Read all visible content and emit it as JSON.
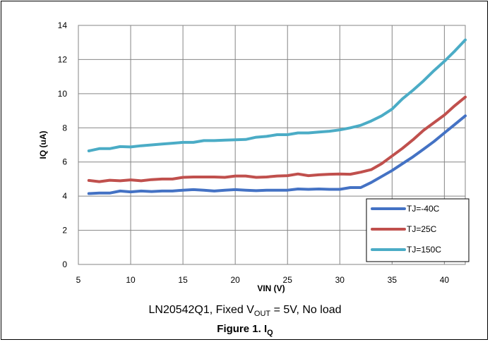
{
  "caption": {
    "prefix": "LN20542Q1, Fixed V",
    "sub": "OUT",
    "suffix": " = 5V, No load"
  },
  "figure_title": {
    "prefix": "Figure 1. I",
    "sub": "Q"
  },
  "chart_data": {
    "type": "line",
    "title": "",
    "xlabel": "VIN (V)",
    "ylabel": "IQ (uA)",
    "xlim": [
      5,
      42
    ],
    "ylim": [
      0,
      14
    ],
    "xticks": [
      5,
      10,
      15,
      20,
      25,
      30,
      35,
      40
    ],
    "yticks": [
      0,
      2,
      4,
      6,
      8,
      10,
      12,
      14
    ],
    "grid": true,
    "legend_position": "bottom-right",
    "x": [
      6,
      7,
      8,
      9,
      10,
      11,
      12,
      13,
      14,
      15,
      16,
      17,
      18,
      19,
      20,
      21,
      22,
      23,
      24,
      25,
      26,
      27,
      28,
      29,
      30,
      31,
      32,
      33,
      34,
      35,
      36,
      37,
      38,
      39,
      40,
      41,
      42
    ],
    "series": [
      {
        "name": "TJ=-40C",
        "color": "#4472C4",
        "values": [
          4.15,
          4.18,
          4.18,
          4.3,
          4.25,
          4.3,
          4.27,
          4.3,
          4.3,
          4.35,
          4.38,
          4.35,
          4.3,
          4.35,
          4.38,
          4.35,
          4.32,
          4.35,
          4.35,
          4.35,
          4.42,
          4.4,
          4.42,
          4.4,
          4.4,
          4.5,
          4.5,
          4.8,
          5.15,
          5.5,
          5.9,
          6.3,
          6.75,
          7.2,
          7.7,
          8.2,
          8.7
        ]
      },
      {
        "name": "TJ=25C",
        "color": "#C0504D",
        "values": [
          4.92,
          4.85,
          4.93,
          4.9,
          4.95,
          4.9,
          4.97,
          5.0,
          5.0,
          5.1,
          5.12,
          5.12,
          5.12,
          5.1,
          5.18,
          5.18,
          5.1,
          5.12,
          5.18,
          5.2,
          5.3,
          5.2,
          5.25,
          5.28,
          5.3,
          5.28,
          5.4,
          5.55,
          5.9,
          6.35,
          6.8,
          7.3,
          7.85,
          8.3,
          8.75,
          9.3,
          9.8
        ]
      },
      {
        "name": "TJ=150C",
        "color": "#4BACC6",
        "values": [
          6.65,
          6.78,
          6.78,
          6.9,
          6.88,
          6.95,
          7.0,
          7.05,
          7.1,
          7.15,
          7.15,
          7.25,
          7.25,
          7.28,
          7.3,
          7.32,
          7.45,
          7.5,
          7.6,
          7.6,
          7.7,
          7.7,
          7.75,
          7.8,
          7.88,
          8.0,
          8.15,
          8.4,
          8.7,
          9.1,
          9.7,
          10.2,
          10.75,
          11.35,
          11.9,
          12.5,
          13.15
        ]
      }
    ]
  }
}
